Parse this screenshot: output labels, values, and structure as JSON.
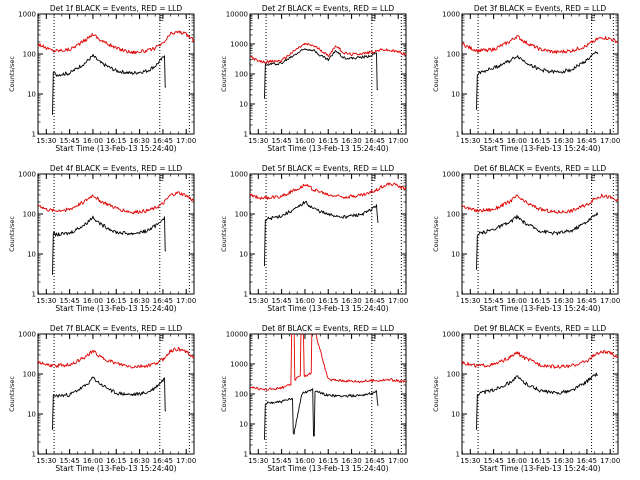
{
  "figure": {
    "panels": [
      {
        "title": "Det 1f BLACK = Events, RED = LLD",
        "marker": "E"
      },
      {
        "title": "Det 2f BLACK = Events, RED = LLD",
        "marker": "E"
      },
      {
        "title": "Det 3f BLACK = Events, RED = LLD",
        "marker": "E"
      },
      {
        "title": "Det 4f BLACK = Events, RED = LLD",
        "marker": "E"
      },
      {
        "title": "Det 5f BLACK = Events, RED = LLD",
        "marker": "E"
      },
      {
        "title": "Det 6f BLACK = Events, RED = LLD",
        "marker": "E"
      },
      {
        "title": "Det 7f BLACK = Events, RED = LLD",
        "marker": "E"
      },
      {
        "title": "Det 8f BLACK = Events, RED = LLD",
        "marker": "E"
      },
      {
        "title": "Det 9f BLACK = Events, RED = LLD",
        "marker": "E"
      }
    ],
    "colors": {
      "events": "#000000",
      "lld": "#e00000",
      "axes": "#000000"
    }
  },
  "chart_data": [
    {
      "type": "line",
      "title": "Det 1f BLACK = Events, RED = LLD",
      "xlabel": "Start Time (13-Feb-13 15:24:40)",
      "ylabel": "Counts/sec",
      "yscale": "log",
      "xlim": [
        "15:24:40",
        "17:05:00"
      ],
      "ylim": [
        1,
        1000
      ],
      "xticks": [
        "15:30",
        "15:45",
        "16:00",
        "16:15",
        "16:30",
        "16:45",
        "17:00"
      ],
      "yticks": [
        "1",
        "10",
        "100",
        "1000"
      ],
      "vlines": [
        "15:35",
        "16:43",
        "17:02"
      ],
      "series": [
        {
          "name": "LLD",
          "color": "#e00000",
          "x": [
            "15:24:40",
            "15:30",
            "15:35",
            "15:45",
            "15:55",
            "16:00",
            "16:05",
            "16:15",
            "16:25",
            "16:35",
            "16:40",
            "16:45",
            "16:50",
            "16:55",
            "17:00",
            "17:05"
          ],
          "values": [
            180,
            140,
            120,
            130,
            220,
            320,
            220,
            140,
            110,
            120,
            140,
            180,
            320,
            360,
            310,
            220
          ]
        },
        {
          "name": "Events",
          "color": "#000000",
          "x": [
            "15:34",
            "15:35",
            "15:36",
            "15:45",
            "15:55",
            "16:00",
            "16:05",
            "16:15",
            "16:25",
            "16:35",
            "16:40",
            "16:45",
            "16:46",
            "16:47"
          ],
          "values": [
            3,
            35,
            30,
            33,
            60,
            90,
            60,
            38,
            33,
            38,
            50,
            80,
            90,
            15
          ]
        }
      ]
    },
    {
      "type": "line",
      "title": "Det 2f BLACK = Events, RED = LLD",
      "xlabel": "Start Time (13-Feb-13 15:24:40)",
      "ylabel": "Counts/sec",
      "yscale": "log",
      "xlim": [
        "15:24:40",
        "17:05:00"
      ],
      "ylim": [
        1,
        10000
      ],
      "xticks": [
        "15:30",
        "15:45",
        "16:00",
        "16:15",
        "16:30",
        "16:45",
        "17:00"
      ],
      "yticks": [
        "1",
        "10",
        "100",
        "1000",
        "10000"
      ],
      "vlines": [
        "15:35",
        "16:43",
        "17:02"
      ],
      "series": [
        {
          "name": "LLD",
          "color": "#e00000",
          "x": [
            "15:24:40",
            "15:30",
            "15:35",
            "15:45",
            "15:55",
            "16:00",
            "16:05",
            "16:10",
            "16:15",
            "16:20",
            "16:25",
            "16:30",
            "16:40",
            "16:50",
            "16:55",
            "17:00",
            "17:05"
          ],
          "values": [
            400,
            260,
            250,
            280,
            700,
            1000,
            900,
            650,
            400,
            900,
            500,
            450,
            500,
            650,
            600,
            550,
            450
          ]
        },
        {
          "name": "Events",
          "color": "#000000",
          "x": [
            "15:34",
            "15:35",
            "15:36",
            "15:45",
            "15:55",
            "16:00",
            "16:05",
            "16:10",
            "16:15",
            "16:20",
            "16:25",
            "16:30",
            "16:40",
            "16:46",
            "16:47"
          ],
          "values": [
            15,
            200,
            210,
            230,
            500,
            700,
            650,
            420,
            300,
            600,
            350,
            330,
            380,
            500,
            30
          ]
        }
      ]
    },
    {
      "type": "line",
      "title": "Det 3f BLACK = Events, RED = LLD",
      "xlabel": "Start Time (13-Feb-13 15:24:40)",
      "ylabel": "Counts/sec",
      "yscale": "log",
      "xlim": [
        "15:24:40",
        "17:05:00"
      ],
      "ylim": [
        1,
        1000
      ],
      "xticks": [
        "15:30",
        "15:45",
        "16:00",
        "16:15",
        "16:30",
        "16:45",
        "17:00"
      ],
      "yticks": [
        "1",
        "10",
        "100",
        "1000"
      ],
      "vlines": [
        "15:35",
        "16:48",
        "17:02"
      ],
      "series": [
        {
          "name": "LLD",
          "color": "#e00000",
          "x": [
            "15:24:40",
            "15:30",
            "15:35",
            "15:45",
            "15:55",
            "16:00",
            "16:05",
            "16:15",
            "16:25",
            "16:35",
            "16:45",
            "16:50",
            "16:55",
            "17:00",
            "17:05"
          ],
          "values": [
            180,
            140,
            120,
            130,
            200,
            280,
            200,
            130,
            110,
            120,
            160,
            220,
            260,
            240,
            200
          ]
        },
        {
          "name": "Events",
          "color": "#000000",
          "x": [
            "15:34",
            "15:35",
            "15:36",
            "15:45",
            "15:55",
            "16:00",
            "16:05",
            "16:15",
            "16:25",
            "16:35",
            "16:45",
            "16:51",
            "16:52"
          ],
          "values": [
            4,
            30,
            35,
            45,
            65,
            90,
            65,
            40,
            35,
            40,
            70,
            110,
            100
          ]
        }
      ]
    },
    {
      "type": "line",
      "title": "Det 4f BLACK = Events, RED = LLD",
      "xlabel": "Start Time (13-Feb-13 15:24:40)",
      "ylabel": "Counts/sec",
      "yscale": "log",
      "xlim": [
        "15:24:40",
        "17:05:00"
      ],
      "ylim": [
        1,
        1000
      ],
      "xticks": [
        "15:30",
        "15:45",
        "16:00",
        "16:15",
        "16:30",
        "16:45",
        "17:00"
      ],
      "yticks": [
        "1",
        "10",
        "100",
        "1000"
      ],
      "vlines": [
        "15:35",
        "16:43",
        "17:02"
      ],
      "series": [
        {
          "name": "LLD",
          "color": "#e00000",
          "x": [
            "15:24:40",
            "15:30",
            "15:35",
            "15:45",
            "15:55",
            "16:00",
            "16:05",
            "16:15",
            "16:25",
            "16:35",
            "16:40",
            "16:45",
            "16:50",
            "16:55",
            "17:00",
            "17:05"
          ],
          "values": [
            170,
            130,
            120,
            130,
            210,
            300,
            210,
            140,
            110,
            120,
            140,
            180,
            300,
            340,
            290,
            210
          ]
        },
        {
          "name": "Events",
          "color": "#000000",
          "x": [
            "15:34",
            "15:35",
            "15:36",
            "15:45",
            "15:55",
            "16:00",
            "16:05",
            "16:15",
            "16:25",
            "16:35",
            "16:40",
            "16:45",
            "16:46",
            "16:47"
          ],
          "values": [
            3,
            33,
            30,
            33,
            55,
            85,
            55,
            35,
            32,
            38,
            50,
            75,
            85,
            12
          ]
        }
      ]
    },
    {
      "type": "line",
      "title": "Det 5f BLACK = Events, RED = LLD",
      "xlabel": "Start Time (13-Feb-13 15:24:40)",
      "ylabel": "Counts/sec",
      "yscale": "log",
      "xlim": [
        "15:24:40",
        "17:05:00"
      ],
      "ylim": [
        1,
        1000
      ],
      "xticks": [
        "15:30",
        "15:45",
        "16:00",
        "16:15",
        "16:30",
        "16:45",
        "17:00"
      ],
      "yticks": [
        "1",
        "10",
        "100",
        "1000"
      ],
      "vlines": [
        "15:35",
        "16:43",
        "17:02"
      ],
      "series": [
        {
          "name": "LLD",
          "color": "#e00000",
          "x": [
            "15:24:40",
            "15:30",
            "15:35",
            "15:45",
            "15:55",
            "16:00",
            "16:05",
            "16:15",
            "16:25",
            "16:35",
            "16:40",
            "16:45",
            "16:50",
            "16:55",
            "17:00",
            "17:05"
          ],
          "values": [
            300,
            260,
            250,
            280,
            420,
            550,
            420,
            300,
            270,
            290,
            320,
            380,
            500,
            560,
            520,
            420
          ]
        },
        {
          "name": "Events",
          "color": "#000000",
          "x": [
            "15:34",
            "15:35",
            "15:36",
            "15:45",
            "15:55",
            "16:00",
            "16:05",
            "16:15",
            "16:25",
            "16:35",
            "16:40",
            "16:45",
            "16:46",
            "16:47"
          ],
          "values": [
            5,
            70,
            75,
            90,
            140,
            200,
            140,
            95,
            85,
            95,
            110,
            150,
            170,
            60
          ]
        }
      ]
    },
    {
      "type": "line",
      "title": "Det 6f BLACK = Events, RED = LLD",
      "xlabel": "Start Time (13-Feb-13 15:24:40)",
      "ylabel": "Counts/sec",
      "yscale": "log",
      "xlim": [
        "15:24:40",
        "17:05:00"
      ],
      "ylim": [
        1,
        1000
      ],
      "xticks": [
        "15:30",
        "15:45",
        "16:00",
        "16:15",
        "16:30",
        "16:45",
        "17:00"
      ],
      "yticks": [
        "1",
        "10",
        "100",
        "1000"
      ],
      "vlines": [
        "15:35",
        "16:48",
        "17:02"
      ],
      "series": [
        {
          "name": "LLD",
          "color": "#e00000",
          "x": [
            "15:24:40",
            "15:30",
            "15:35",
            "15:45",
            "15:55",
            "16:00",
            "16:05",
            "16:15",
            "16:25",
            "16:35",
            "16:45",
            "16:50",
            "16:55",
            "17:00",
            "17:05"
          ],
          "values": [
            170,
            130,
            120,
            130,
            200,
            280,
            200,
            130,
            110,
            120,
            170,
            240,
            290,
            260,
            210
          ]
        },
        {
          "name": "Events",
          "color": "#000000",
          "x": [
            "15:34",
            "15:35",
            "15:36",
            "15:45",
            "15:55",
            "16:00",
            "16:05",
            "16:15",
            "16:25",
            "16:35",
            "16:45",
            "16:51",
            "16:52"
          ],
          "values": [
            4,
            28,
            32,
            42,
            60,
            85,
            60,
            38,
            33,
            38,
            65,
            100,
            95
          ]
        }
      ]
    },
    {
      "type": "line",
      "title": "Det 7f BLACK = Events, RED = LLD",
      "xlabel": "Start Time (13-Feb-13 15:24:40)",
      "ylabel": "Counts/sec",
      "yscale": "log",
      "xlim": [
        "15:24:40",
        "17:05:00"
      ],
      "ylim": [
        1,
        1000
      ],
      "xticks": [
        "15:30",
        "15:45",
        "16:00",
        "16:15",
        "16:30",
        "16:45",
        "17:00"
      ],
      "yticks": [
        "1",
        "10",
        "100",
        "1000"
      ],
      "vlines": [
        "15:35",
        "16:43",
        "17:02"
      ],
      "series": [
        {
          "name": "LLD",
          "color": "#e00000",
          "x": [
            "15:24:40",
            "15:30",
            "15:35",
            "15:45",
            "15:55",
            "16:00",
            "16:05",
            "16:15",
            "16:25",
            "16:35",
            "16:40",
            "16:45",
            "16:50",
            "16:55",
            "17:00",
            "17:05"
          ],
          "values": [
            200,
            170,
            160,
            170,
            260,
            380,
            260,
            180,
            150,
            160,
            180,
            230,
            380,
            420,
            360,
            260
          ]
        },
        {
          "name": "Events",
          "color": "#000000",
          "x": [
            "15:34",
            "15:35",
            "15:36",
            "15:45",
            "15:55",
            "16:00",
            "16:05",
            "16:15",
            "16:25",
            "16:35",
            "16:40",
            "16:45",
            "16:46",
            "16:47"
          ],
          "values": [
            4,
            30,
            28,
            30,
            50,
            80,
            55,
            33,
            30,
            34,
            45,
            70,
            80,
            12
          ]
        }
      ]
    },
    {
      "type": "line",
      "title": "Det 8f BLACK = Events, RED = LLD",
      "xlabel": "Start Time (13-Feb-13 15:24:40)",
      "ylabel": "Counts/sec",
      "yscale": "log",
      "xlim": [
        "15:24:40",
        "17:05:00"
      ],
      "ylim": [
        1,
        10000
      ],
      "xticks": [
        "15:30",
        "15:45",
        "16:00",
        "16:15",
        "16:30",
        "16:45",
        "17:00"
      ],
      "yticks": [
        "1",
        "10",
        "100",
        "1000",
        "10000"
      ],
      "vlines": [
        "15:35",
        "16:43",
        "17:02"
      ],
      "series": [
        {
          "name": "LLD",
          "color": "#e00000",
          "x": [
            "15:24:40",
            "15:30",
            "15:35",
            "15:45",
            "15:51",
            "15:52",
            "15:53",
            "15:54",
            "15:57",
            "15:58",
            "15:59",
            "16:00",
            "16:04",
            "16:05",
            "16:06",
            "16:15",
            "16:25",
            "16:35",
            "16:45",
            "16:55",
            "17:05"
          ],
          "values": [
            180,
            150,
            140,
            160,
            200,
            15000,
            15000,
            300,
            400,
            15000,
            15000,
            400,
            500,
            15000,
            15000,
            300,
            280,
            260,
            280,
            300,
            250
          ]
        },
        {
          "name": "Events",
          "color": "#000000",
          "x": [
            "15:34",
            "15:35",
            "15:36",
            "15:45",
            "15:52",
            "15:53",
            "15:58",
            "15:59",
            "16:00",
            "16:05",
            "16:06",
            "16:07",
            "16:15",
            "16:25",
            "16:35",
            "16:45",
            "16:46",
            "16:47"
          ],
          "values": [
            3,
            45,
            50,
            55,
            70,
            5,
            100,
            120,
            110,
            150,
            4,
            120,
            90,
            85,
            90,
            110,
            120,
            40
          ]
        }
      ]
    },
    {
      "type": "line",
      "title": "Det 9f BLACK = Events, RED = LLD",
      "xlabel": "Start Time (13-Feb-13 15:24:40)",
      "ylabel": "Counts/sec",
      "yscale": "log",
      "xlim": [
        "15:24:40",
        "17:05:00"
      ],
      "ylim": [
        1,
        1000
      ],
      "xticks": [
        "15:30",
        "15:45",
        "16:00",
        "16:15",
        "16:30",
        "16:45",
        "17:00"
      ],
      "yticks": [
        "1",
        "10",
        "100",
        "1000"
      ],
      "vlines": [
        "15:35",
        "16:48",
        "17:02"
      ],
      "series": [
        {
          "name": "LLD",
          "color": "#e00000",
          "x": [
            "15:24:40",
            "15:30",
            "15:35",
            "15:45",
            "15:55",
            "16:00",
            "16:05",
            "16:15",
            "16:25",
            "16:35",
            "16:45",
            "16:50",
            "16:55",
            "17:00",
            "17:05"
          ],
          "values": [
            200,
            170,
            160,
            170,
            250,
            340,
            250,
            170,
            150,
            160,
            210,
            300,
            360,
            330,
            260
          ]
        },
        {
          "name": "Events",
          "color": "#000000",
          "x": [
            "15:34",
            "15:35",
            "15:36",
            "15:45",
            "15:55",
            "16:00",
            "16:05",
            "16:15",
            "16:25",
            "16:35",
            "16:45",
            "16:51",
            "16:52"
          ],
          "values": [
            4,
            30,
            33,
            40,
            60,
            85,
            60,
            38,
            33,
            38,
            65,
            100,
            95
          ]
        }
      ]
    }
  ]
}
